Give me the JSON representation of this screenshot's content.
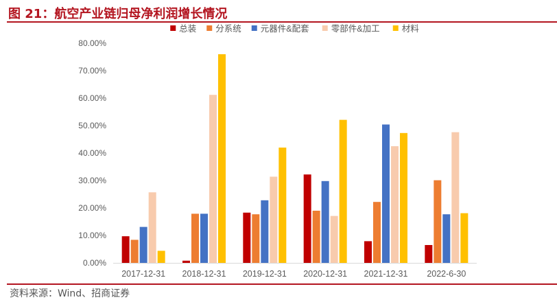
{
  "figure": {
    "title": "图 21：航空产业链归母净利润增长情况",
    "source": "资料来源：Wind、招商证券"
  },
  "chart_data": {
    "type": "bar",
    "categories": [
      "2017-12-31",
      "2018-12-31",
      "2019-12-31",
      "2020-12-31",
      "2021-12-31",
      "2022-6-30"
    ],
    "series": [
      {
        "name": "总装",
        "color": "#c00000",
        "values": [
          9.7,
          0.8,
          18.3,
          32.2,
          7.9,
          6.5
        ]
      },
      {
        "name": "分系统",
        "color": "#ed7d31",
        "values": [
          8.4,
          17.9,
          17.7,
          19.0,
          22.2,
          30.1
        ]
      },
      {
        "name": "元器件&配套",
        "color": "#4472c4",
        "values": [
          13.1,
          17.9,
          22.8,
          29.8,
          50.4,
          17.7
        ]
      },
      {
        "name": "零部件&加工",
        "color": "#f8cbad",
        "values": [
          25.7,
          61.2,
          31.4,
          17.1,
          42.5,
          47.6
        ]
      },
      {
        "name": "材料",
        "color": "#ffc000",
        "values": [
          4.4,
          76.0,
          42.0,
          52.1,
          47.3,
          18.1
        ]
      }
    ],
    "ylim": [
      0,
      80
    ],
    "yticks": [
      0,
      10,
      20,
      30,
      40,
      50,
      60,
      70,
      80
    ],
    "ytick_labels": [
      "0.00%",
      "10.00%",
      "20.00%",
      "30.00%",
      "40.00%",
      "50.00%",
      "60.00%",
      "70.00%",
      "80.00%"
    ],
    "grid": false,
    "legend": "top"
  }
}
